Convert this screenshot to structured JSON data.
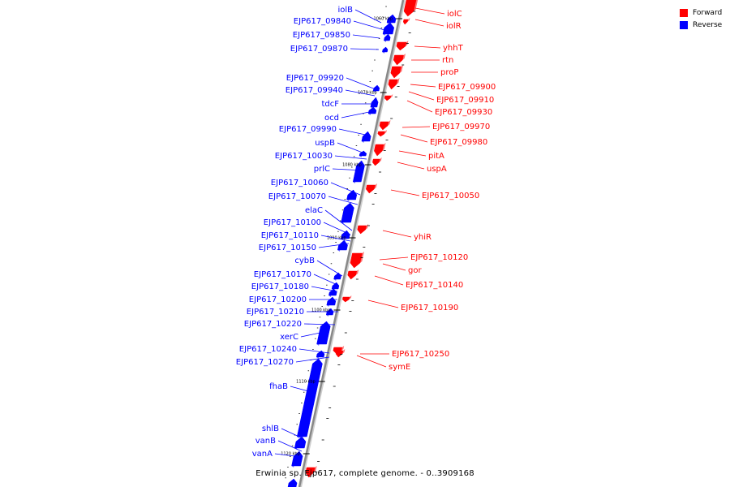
{
  "legend": {
    "items": [
      {
        "label": "Forward",
        "color": "#ff0000"
      },
      {
        "label": "Reverse",
        "color": "#0000ff"
      }
    ]
  },
  "caption": "Erwinia sp. Ejp617, complete genome. - 0..3909168",
  "colors": {
    "forward": "#ff0000",
    "reverse": "#0000ff",
    "backbone": "#888888"
  },
  "scale": {
    "ticks": [
      "1060 kbp",
      "1070 kbp",
      "1080 kbp",
      "1090 kbp",
      "1100 kbp",
      "1110 kbp",
      "1120 kbp"
    ]
  },
  "forward_features": [
    "iolC",
    "iolR",
    "yhhT",
    "rtn",
    "proP",
    "EJP617_09900",
    "EJP617_09910",
    "EJP617_09930",
    "EJP617_09970",
    "EJP617_09980",
    "pitA",
    "uspA",
    "EJP617_10050",
    "yhiR",
    "EJP617_10120",
    "gor",
    "EJP617_10140",
    "EJP617_10190",
    "EJP617_10250",
    "symE"
  ],
  "reverse_features": [
    "iolB",
    "EJP617_09840",
    "EJP617_09850",
    "EJP617_09870",
    "EJP617_09920",
    "EJP617_09940",
    "tdcF",
    "ocd",
    "EJP617_09990",
    "uspB",
    "EJP617_10030",
    "prlC",
    "EJP617_10060",
    "EJP617_10070",
    "elaC",
    "EJP617_10100",
    "EJP617_10110",
    "EJP617_10150",
    "cybB",
    "EJP617_10170",
    "EJP617_10180",
    "EJP617_10200",
    "EJP617_10210",
    "EJP617_10220",
    "xerC",
    "EJP617_10240",
    "EJP617_10270",
    "fhaB",
    "shlB",
    "vanB",
    "vanA"
  ]
}
